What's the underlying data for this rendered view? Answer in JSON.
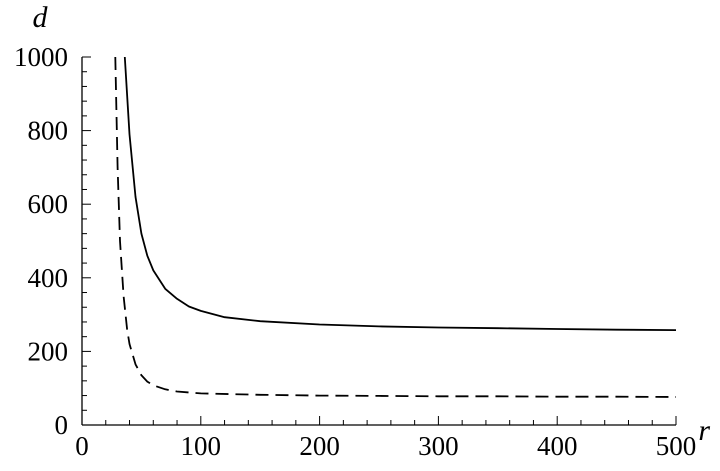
{
  "chart_data": {
    "type": "line",
    "xlabel": "r",
    "ylabel": "d",
    "xlim": [
      0,
      500
    ],
    "ylim": [
      0,
      1000
    ],
    "x_ticks": [
      0,
      100,
      200,
      300,
      400,
      500
    ],
    "y_ticks": [
      0,
      200,
      400,
      600,
      800,
      1000
    ],
    "x_tick_labels": [
      "0",
      "100",
      "200",
      "300",
      "400",
      "500"
    ],
    "y_tick_labels": [
      "0",
      "200",
      "400",
      "600",
      "800",
      "1000"
    ],
    "grid": false,
    "series": [
      {
        "style": "solid",
        "color": "#000000",
        "x": [
          36,
          40,
          45,
          50,
          55,
          60,
          70,
          80,
          90,
          100,
          120,
          150,
          200,
          250,
          300,
          350,
          400,
          450,
          500
        ],
        "y": [
          1000,
          790,
          620,
          520,
          460,
          420,
          370,
          343,
          322,
          310,
          293,
          282,
          273,
          268,
          265,
          263,
          261,
          259,
          258
        ]
      },
      {
        "style": "dashed",
        "color": "#000000",
        "x": [
          28,
          30,
          32,
          35,
          38,
          40,
          45,
          50,
          55,
          60,
          70,
          80,
          100,
          150,
          200,
          250,
          300,
          350,
          400,
          450,
          500
        ],
        "y": [
          1000,
          700,
          500,
          350,
          260,
          220,
          165,
          135,
          118,
          108,
          97,
          91,
          86,
          82,
          80,
          79,
          78,
          78,
          77,
          77,
          76
        ]
      }
    ]
  }
}
